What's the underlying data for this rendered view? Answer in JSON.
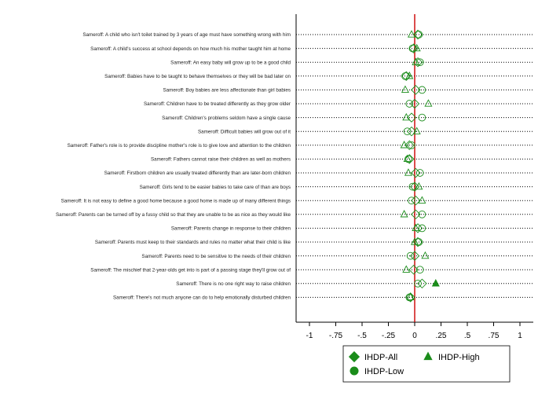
{
  "chart_data": {
    "type": "scatter",
    "orientation": "horizontal-dot-plot",
    "x_ticks": [
      -1,
      -0.75,
      -0.5,
      -0.25,
      0,
      0.25,
      0.5,
      0.75,
      1
    ],
    "x_tick_labels": [
      "-1",
      "-.75",
      "-.5",
      "-.25",
      "0",
      ".25",
      ".5",
      ".75",
      "1"
    ],
    "xlim": [
      -1.1,
      1.1
    ],
    "reference_line_x": 0,
    "categories": [
      "Sameroff: A child who isn't toilet trained by 3 years of age must have something wrong with him",
      "Sameroff: A child's success at school depends on how much his mother taught him at home",
      "Sameroff: An easy baby will grow up to be a good child",
      "Sameroff: Babies have to be taught to behave themselves or they will be bad later on",
      "Sameroff: Boy babies are less affectionate than girl babies",
      "Sameroff: Children have to be treated differently as they grow older",
      "Sameroff: Children's problems seldom have a single cause",
      "Sameroff: Difficult babies will grow out of it",
      "Sameroff: Father's role is to provide discipline mother's role is to give love and attention to the children",
      "Sameroff: Fathers cannot raise their children as well as mothers",
      "Sameroff: Firstborn children are usually treated differently than are later-born children",
      "Sameroff: Girls tend to be easier babies to take care of than are boys",
      "Sameroff: It is not easy to define a good home because a good home is made up of many different things",
      "Sameroff: Parents can be turned off by a fussy child so that they are unable to be as nice as they would like",
      "Sameroff: Parents change in response to their children",
      "Sameroff: Parents must keep to their standards and rules no matter what their child is like",
      "Sameroff: Parents need to be sensitive to the needs of their children",
      "Sameroff: The mischief that 2-year-olds get into is part of a passing stage they'll grow out of",
      "Sameroff: There is no one right way to raise children",
      "Sameroff: There's not much anyone can do to help emotionally disturbed children"
    ],
    "series": [
      {
        "name": "IHDP-All",
        "marker": "diamond",
        "values": [
          0.03,
          -0.01,
          0.03,
          -0.08,
          0.01,
          0.0,
          -0.03,
          -0.03,
          -0.05,
          -0.05,
          0.01,
          0.0,
          0.01,
          0.01,
          0.03,
          0.03,
          0.0,
          -0.01,
          0.07,
          -0.04
        ],
        "significant": [
          false,
          false,
          false,
          false,
          false,
          false,
          false,
          false,
          false,
          false,
          false,
          false,
          false,
          false,
          false,
          false,
          false,
          false,
          false,
          false
        ]
      },
      {
        "name": "IHDP-Low",
        "marker": "circle",
        "values": [
          0.04,
          -0.02,
          0.05,
          -0.09,
          0.07,
          -0.05,
          0.07,
          -0.07,
          -0.03,
          -0.06,
          0.05,
          -0.02,
          -0.03,
          0.07,
          0.07,
          0.04,
          -0.04,
          0.05,
          0.03,
          -0.05
        ],
        "significant": [
          false,
          false,
          false,
          false,
          false,
          false,
          false,
          false,
          false,
          false,
          false,
          false,
          false,
          false,
          false,
          false,
          false,
          false,
          false,
          false
        ]
      },
      {
        "name": "IHDP-High",
        "marker": "triangle",
        "values": [
          -0.03,
          0.02,
          0.01,
          -0.05,
          -0.09,
          0.13,
          -0.08,
          0.02,
          -0.1,
          -0.07,
          -0.06,
          0.04,
          0.07,
          -0.1,
          0.01,
          0.0,
          0.1,
          -0.08,
          0.2,
          -0.04
        ],
        "significant": [
          false,
          false,
          false,
          false,
          false,
          false,
          false,
          false,
          false,
          false,
          false,
          false,
          false,
          false,
          false,
          false,
          false,
          false,
          true,
          false
        ]
      }
    ],
    "colors": {
      "marker": "#1a8c1a",
      "reference_line": "#cc0000",
      "dotted_line": "#000000"
    },
    "legend": {
      "placement": "bottom-center",
      "entries": [
        {
          "name": "IHDP-All",
          "marker": "diamond"
        },
        {
          "name": "IHDP-High",
          "marker": "triangle"
        },
        {
          "name": "IHDP-Low",
          "marker": "circle"
        }
      ]
    },
    "grid": false,
    "title": "",
    "xlabel": "",
    "ylabel": ""
  }
}
